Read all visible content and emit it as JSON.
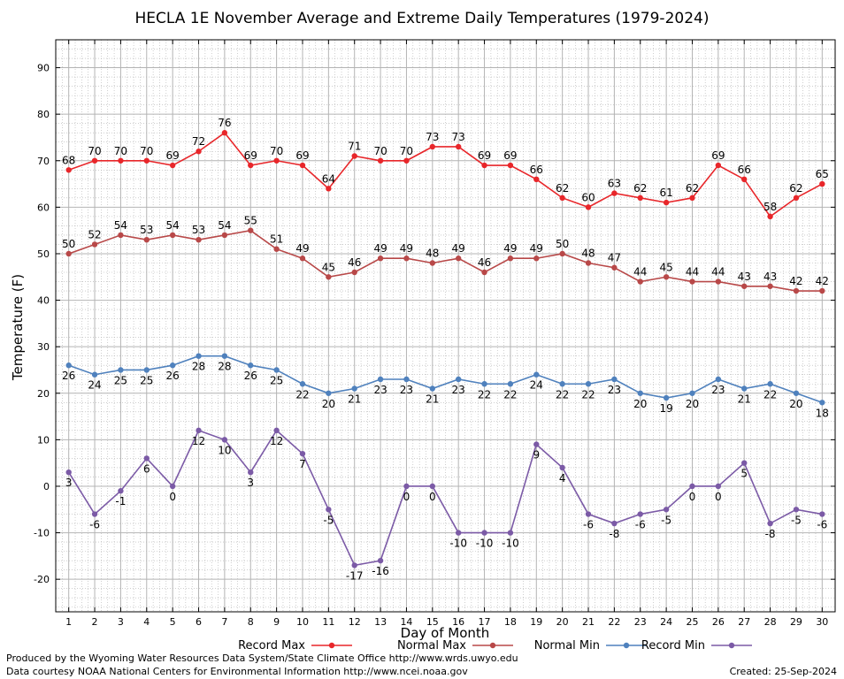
{
  "chart_data": {
    "type": "line",
    "title": "HECLA 1E November Average and Extreme Daily Temperatures (1979-2024)",
    "xlabel": "Day of Month",
    "ylabel": "Temperature (F)",
    "ylim": [
      -27,
      96
    ],
    "xlim": [
      0.5,
      30.5
    ],
    "yticks": [
      -20,
      -10,
      0,
      10,
      20,
      30,
      40,
      50,
      60,
      70,
      80,
      90
    ],
    "x": [
      1,
      2,
      3,
      4,
      5,
      6,
      7,
      8,
      9,
      10,
      11,
      12,
      13,
      14,
      15,
      16,
      17,
      18,
      19,
      20,
      21,
      22,
      23,
      24,
      25,
      26,
      27,
      28,
      29,
      30
    ],
    "grid": true,
    "legend_position": "bottom",
    "series": [
      {
        "name": "Record Max",
        "color": "#e8262a",
        "label_pos": "above",
        "values": [
          68,
          70,
          70,
          70,
          69,
          72,
          76,
          69,
          70,
          69,
          64,
          71,
          70,
          70,
          73,
          73,
          69,
          69,
          66,
          62,
          60,
          63,
          62,
          61,
          62,
          69,
          66,
          58,
          62,
          65
        ]
      },
      {
        "name": "Normal Max",
        "color": "#b84848",
        "label_pos": "above",
        "values": [
          50,
          52,
          54,
          53,
          54,
          53,
          54,
          55,
          51,
          49,
          45,
          46,
          49,
          49,
          48,
          49,
          46,
          49,
          49,
          50,
          48,
          47,
          44,
          45,
          44,
          44,
          43,
          43,
          42,
          42
        ]
      },
      {
        "name": "Normal Min",
        "color": "#4f81bd",
        "label_pos": "below",
        "values": [
          26,
          24,
          25,
          25,
          26,
          28,
          28,
          26,
          25,
          22,
          20,
          21,
          23,
          23,
          21,
          23,
          22,
          22,
          24,
          22,
          22,
          23,
          20,
          19,
          20,
          23,
          21,
          22,
          20,
          18
        ]
      },
      {
        "name": "Record Min",
        "color": "#7b5aa6",
        "label_pos": "below",
        "values": [
          3,
          -6,
          -1,
          6,
          0,
          12,
          10,
          3,
          12,
          7,
          -5,
          -17,
          -16,
          0,
          0,
          -10,
          -10,
          -10,
          9,
          4,
          -6,
          -8,
          -6,
          -5,
          0,
          0,
          5,
          -8,
          -5,
          -6
        ]
      }
    ]
  },
  "footer": {
    "credit_line_1": "Produced by the Wyoming Water Resources Data System/State Climate Office http://www.wrds.uwyo.edu",
    "credit_line_2": "Data courtesy NOAA National Centers for Environmental Information http://www.ncei.noaa.gov",
    "created": "Created: 25-Sep-2024"
  }
}
